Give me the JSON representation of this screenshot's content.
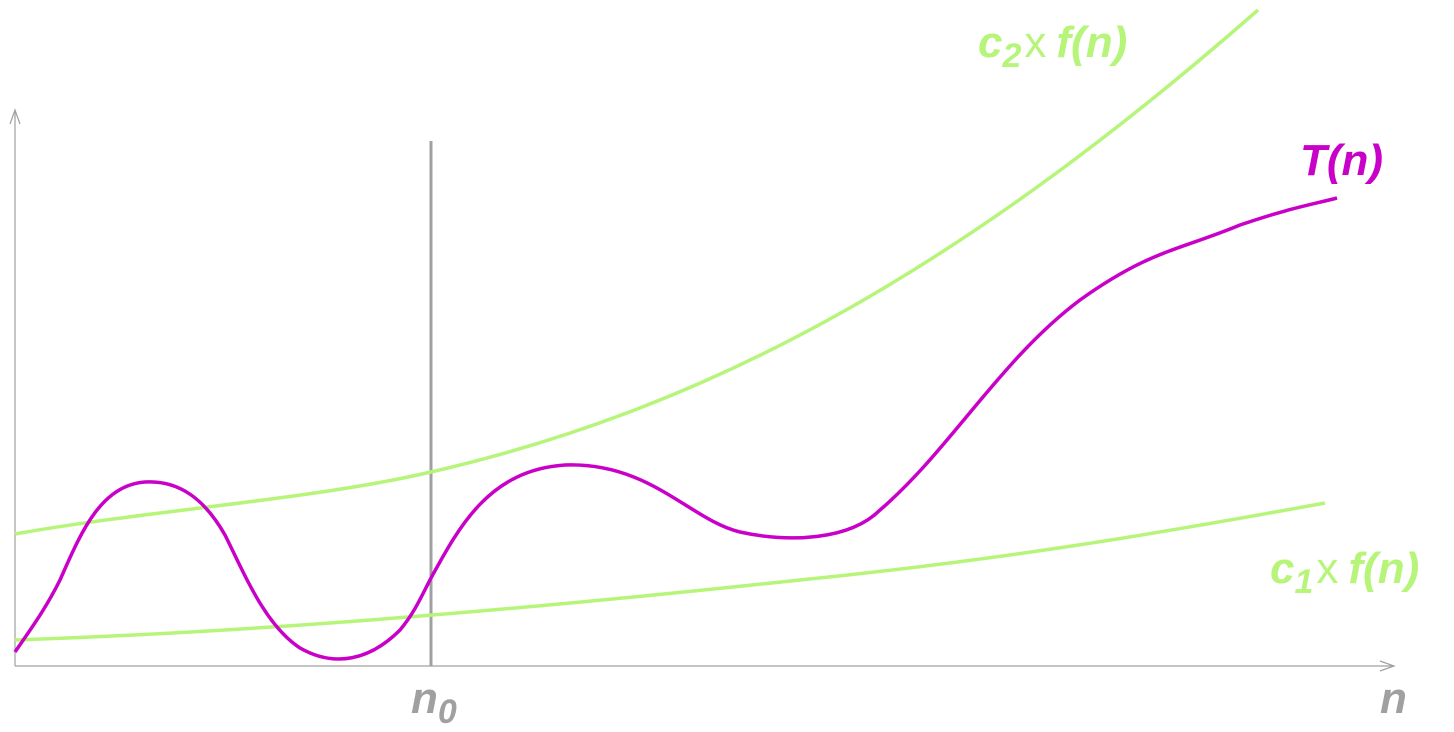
{
  "colors": {
    "axis": "#a0a0a0",
    "bound": "#b6f57a",
    "t_curve": "#c800c8",
    "n0_line": "#a0a0a0"
  },
  "labels": {
    "upper_bound": {
      "coef": "c",
      "sub": "2",
      "times": "x",
      "fn": "f(n)"
    },
    "lower_bound": {
      "coef": "c",
      "sub": "1",
      "times": "x",
      "fn": "f(n)"
    },
    "t_curve": "T(n)",
    "n0": {
      "base": "n",
      "sub": "0"
    },
    "x_axis": "n"
  }
}
